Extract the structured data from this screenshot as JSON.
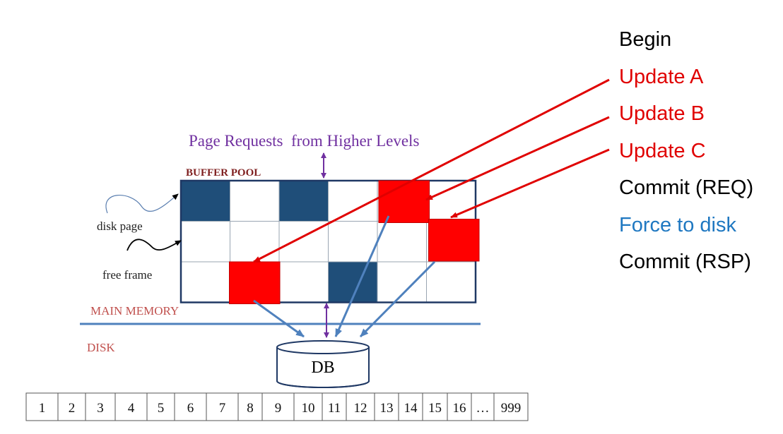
{
  "labels": {
    "page_requests": "Page Requests  from Higher Levels",
    "buffer_pool": "BUFFER POOL",
    "disk_page": "disk page",
    "free_frame": "free frame",
    "main_memory": "MAIN MEMORY",
    "disk": "DISK",
    "db": "DB"
  },
  "steps": [
    {
      "text": "Begin",
      "color": "#000000"
    },
    {
      "text": "Update A",
      "color": "#e00000"
    },
    {
      "text": "Update B",
      "color": "#e00000"
    },
    {
      "text": "Update C",
      "color": "#e00000"
    },
    {
      "text": "Commit (REQ)",
      "color": "#000000"
    },
    {
      "text": "Force to disk",
      "color": "#1f78c1"
    },
    {
      "text": "Commit (RSP)",
      "color": "#000000"
    }
  ],
  "disk_pages": [
    "1",
    "2",
    "3",
    "4",
    "5",
    "6",
    "7",
    "8",
    "9",
    "10",
    "11",
    "12",
    "13",
    "14",
    "15",
    "16",
    "…",
    "999"
  ],
  "buffer_pool": {
    "rows": 3,
    "cols": 6,
    "disk_page_frames": [
      [
        0,
        0
      ],
      [
        0,
        2
      ],
      [
        2,
        3
      ]
    ],
    "updated_frames": [
      {
        "name": "A",
        "cell": [
          2,
          1
        ]
      },
      {
        "name": "B",
        "cell": [
          0,
          4
        ]
      },
      {
        "name": "C",
        "cell": [
          1,
          5
        ]
      }
    ]
  },
  "colors": {
    "disk_page": "#1f4e79",
    "updated": "#ff0000",
    "update_arrow": "#e00000",
    "flush_arrow": "#4f81bd",
    "request_arrow": "#7030a0",
    "frame_border": "#1f3864"
  }
}
